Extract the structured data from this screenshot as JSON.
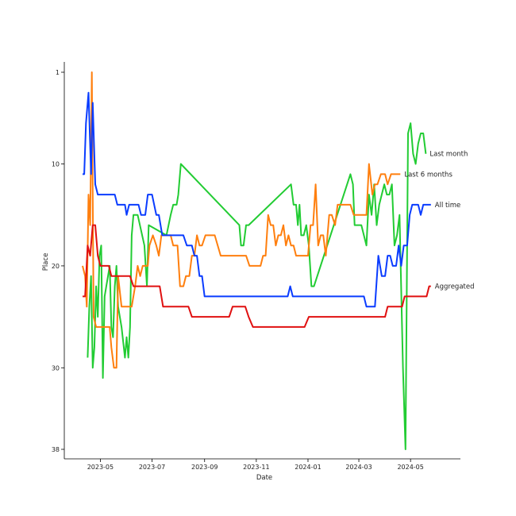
{
  "chart_data": {
    "type": "line",
    "xlabel": "Date",
    "ylabel": "Place",
    "y_axis": "inverted",
    "ylim": [
      1,
      38
    ],
    "xlim": [
      "2023-04-10",
      "2024-06-12"
    ],
    "x_ticks": [
      "2023-05",
      "2023-07",
      "2023-09",
      "2023-11",
      "2024-01",
      "2024-03",
      "2024-05"
    ],
    "y_ticks": [
      1,
      10,
      20,
      30,
      38
    ],
    "grid": false,
    "legend": "labels at line ends (right)",
    "series": [
      {
        "name": "Last month",
        "color": "#22cc33",
        "points": [
          [
            "2023-04-16",
            29
          ],
          [
            "2023-04-18",
            24
          ],
          [
            "2023-04-20",
            21
          ],
          [
            "2023-04-22",
            30
          ],
          [
            "2023-04-24",
            28
          ],
          [
            "2023-04-26",
            22
          ],
          [
            "2023-04-28",
            25
          ],
          [
            "2023-04-30",
            19
          ],
          [
            "2023-05-02",
            18
          ],
          [
            "2023-05-04",
            31
          ],
          [
            "2023-05-06",
            23
          ],
          [
            "2023-05-08",
            22
          ],
          [
            "2023-05-12",
            20
          ],
          [
            "2023-05-14",
            26
          ],
          [
            "2023-05-16",
            27
          ],
          [
            "2023-05-18",
            22
          ],
          [
            "2023-05-20",
            20
          ],
          [
            "2023-05-22",
            24
          ],
          [
            "2023-05-26",
            26
          ],
          [
            "2023-05-30",
            29
          ],
          [
            "2023-06-01",
            27
          ],
          [
            "2023-06-03",
            29
          ],
          [
            "2023-06-05",
            26
          ],
          [
            "2023-06-07",
            17
          ],
          [
            "2023-06-09",
            15
          ],
          [
            "2023-06-14",
            15
          ],
          [
            "2023-06-22",
            18
          ],
          [
            "2023-06-25",
            22
          ],
          [
            "2023-06-27",
            16
          ],
          [
            "2023-07-18",
            17
          ],
          [
            "2023-07-23",
            15
          ],
          [
            "2023-07-26",
            14
          ],
          [
            "2023-07-30",
            14
          ],
          [
            "2023-08-01",
            13
          ],
          [
            "2023-08-04",
            10
          ],
          [
            "2023-10-12",
            16
          ],
          [
            "2023-10-14",
            18
          ],
          [
            "2023-10-17",
            18
          ],
          [
            "2023-10-20",
            16
          ],
          [
            "2023-10-23",
            16
          ],
          [
            "2023-12-12",
            12
          ],
          [
            "2023-12-15",
            14
          ],
          [
            "2023-12-18",
            14
          ],
          [
            "2023-12-20",
            16
          ],
          [
            "2023-12-22",
            14
          ],
          [
            "2023-12-24",
            17
          ],
          [
            "2023-12-27",
            17
          ],
          [
            "2023-12-30",
            16
          ],
          [
            "2024-01-02",
            18
          ],
          [
            "2024-01-05",
            22
          ],
          [
            "2024-01-08",
            22
          ],
          [
            "2024-02-20",
            11
          ],
          [
            "2024-02-23",
            12
          ],
          [
            "2024-02-25",
            16
          ],
          [
            "2024-03-04",
            16
          ],
          [
            "2024-03-10",
            18
          ],
          [
            "2024-03-13",
            13
          ],
          [
            "2024-03-16",
            15
          ],
          [
            "2024-03-19",
            12
          ],
          [
            "2024-03-22",
            16
          ],
          [
            "2024-03-25",
            14
          ],
          [
            "2024-03-31",
            12
          ],
          [
            "2024-04-03",
            13
          ],
          [
            "2024-04-06",
            13
          ],
          [
            "2024-04-09",
            12
          ],
          [
            "2024-04-12",
            18
          ],
          [
            "2024-04-15",
            17
          ],
          [
            "2024-04-18",
            15
          ],
          [
            "2024-04-22",
            30
          ],
          [
            "2024-04-25",
            38
          ],
          [
            "2024-04-28",
            7
          ],
          [
            "2024-05-01",
            6
          ],
          [
            "2024-05-04",
            9
          ],
          [
            "2024-05-07",
            10
          ],
          [
            "2024-05-10",
            8
          ],
          [
            "2024-05-13",
            7
          ],
          [
            "2024-05-16",
            7
          ],
          [
            "2024-05-19",
            9
          ]
        ]
      },
      {
        "name": "Last 6 months",
        "color": "#ff7f0e",
        "points": [
          [
            "2023-04-10",
            20
          ],
          [
            "2023-04-13",
            21
          ],
          [
            "2023-04-15",
            24
          ],
          [
            "2023-04-17",
            13
          ],
          [
            "2023-04-19",
            16
          ],
          [
            "2023-04-21",
            1
          ],
          [
            "2023-04-23",
            25
          ],
          [
            "2023-04-26",
            26
          ],
          [
            "2023-04-30",
            26
          ],
          [
            "2023-05-08",
            26
          ],
          [
            "2023-05-12",
            26
          ],
          [
            "2023-05-14",
            28
          ],
          [
            "2023-05-17",
            30
          ],
          [
            "2023-05-20",
            30
          ],
          [
            "2023-05-22",
            21
          ],
          [
            "2023-05-26",
            24
          ],
          [
            "2023-06-07",
            24
          ],
          [
            "2023-06-11",
            22
          ],
          [
            "2023-06-14",
            20
          ],
          [
            "2023-06-17",
            21
          ],
          [
            "2023-06-20",
            20
          ],
          [
            "2023-06-26",
            20
          ],
          [
            "2023-06-28",
            18
          ],
          [
            "2023-07-02",
            17
          ],
          [
            "2023-07-06",
            18
          ],
          [
            "2023-07-09",
            19
          ],
          [
            "2023-07-12",
            17
          ],
          [
            "2023-07-23",
            17
          ],
          [
            "2023-07-26",
            18
          ],
          [
            "2023-07-31",
            18
          ],
          [
            "2023-08-03",
            22
          ],
          [
            "2023-08-07",
            22
          ],
          [
            "2023-08-10",
            21
          ],
          [
            "2023-08-14",
            21
          ],
          [
            "2023-08-17",
            19
          ],
          [
            "2023-08-20",
            19
          ],
          [
            "2023-08-23",
            17
          ],
          [
            "2023-08-26",
            18
          ],
          [
            "2023-08-29",
            18
          ],
          [
            "2023-09-02",
            17
          ],
          [
            "2023-09-13",
            17
          ],
          [
            "2023-09-20",
            19
          ],
          [
            "2023-10-04",
            19
          ],
          [
            "2023-10-20",
            19
          ],
          [
            "2023-10-24",
            20
          ],
          [
            "2023-11-06",
            20
          ],
          [
            "2023-11-09",
            19
          ],
          [
            "2023-11-12",
            19
          ],
          [
            "2023-11-15",
            15
          ],
          [
            "2023-11-18",
            16
          ],
          [
            "2023-11-21",
            16
          ],
          [
            "2023-11-24",
            18
          ],
          [
            "2023-11-27",
            17
          ],
          [
            "2023-11-30",
            17
          ],
          [
            "2023-12-03",
            16
          ],
          [
            "2023-12-06",
            18
          ],
          [
            "2023-12-09",
            17
          ],
          [
            "2023-12-12",
            18
          ],
          [
            "2023-12-15",
            18
          ],
          [
            "2023-12-18",
            19
          ],
          [
            "2023-12-25",
            19
          ],
          [
            "2024-01-01",
            19
          ],
          [
            "2024-01-04",
            16
          ],
          [
            "2024-01-07",
            16
          ],
          [
            "2024-01-10",
            12
          ],
          [
            "2024-01-13",
            18
          ],
          [
            "2024-01-16",
            17
          ],
          [
            "2024-01-19",
            17
          ],
          [
            "2024-01-22",
            19
          ],
          [
            "2024-01-26",
            15
          ],
          [
            "2024-01-29",
            15
          ],
          [
            "2024-02-02",
            16
          ],
          [
            "2024-02-05",
            14
          ],
          [
            "2024-02-20",
            14
          ],
          [
            "2024-02-24",
            15
          ],
          [
            "2024-03-10",
            15
          ],
          [
            "2024-03-13",
            10
          ],
          [
            "2024-03-17",
            13
          ],
          [
            "2024-03-20",
            12
          ],
          [
            "2024-03-23",
            12
          ],
          [
            "2024-03-27",
            11
          ],
          [
            "2024-04-01",
            11
          ],
          [
            "2024-04-04",
            12
          ],
          [
            "2024-04-08",
            11
          ],
          [
            "2024-04-19",
            11
          ]
        ]
      },
      {
        "name": "All time",
        "color": "#0a3cff",
        "points": [
          [
            "2023-04-10",
            11
          ],
          [
            "2023-04-12",
            11
          ],
          [
            "2023-04-14",
            6
          ],
          [
            "2023-04-17",
            3
          ],
          [
            "2023-04-20",
            11
          ],
          [
            "2023-04-22",
            4
          ],
          [
            "2023-04-25",
            12
          ],
          [
            "2023-04-28",
            13
          ],
          [
            "2023-05-18",
            13
          ],
          [
            "2023-05-21",
            14
          ],
          [
            "2023-05-30",
            14
          ],
          [
            "2023-06-01",
            15
          ],
          [
            "2023-06-04",
            14
          ],
          [
            "2023-06-08",
            14
          ],
          [
            "2023-06-15",
            14
          ],
          [
            "2023-06-18",
            15
          ],
          [
            "2023-06-23",
            15
          ],
          [
            "2023-06-26",
            13
          ],
          [
            "2023-07-01",
            13
          ],
          [
            "2023-07-06",
            15
          ],
          [
            "2023-07-09",
            15
          ],
          [
            "2023-07-13",
            17
          ],
          [
            "2023-07-17",
            17
          ],
          [
            "2023-08-07",
            17
          ],
          [
            "2023-08-11",
            18
          ],
          [
            "2023-08-17",
            18
          ],
          [
            "2023-08-20",
            19
          ],
          [
            "2023-08-23",
            19
          ],
          [
            "2023-08-26",
            21
          ],
          [
            "2023-08-29",
            21
          ],
          [
            "2023-09-01",
            23
          ],
          [
            "2023-12-08",
            23
          ],
          [
            "2023-12-11",
            22
          ],
          [
            "2023-12-14",
            23
          ],
          [
            "2024-03-07",
            23
          ],
          [
            "2024-03-10",
            24
          ],
          [
            "2024-03-20",
            24
          ],
          [
            "2024-03-24",
            19
          ],
          [
            "2024-03-28",
            21
          ],
          [
            "2024-04-01",
            21
          ],
          [
            "2024-04-04",
            19
          ],
          [
            "2024-04-07",
            19
          ],
          [
            "2024-04-10",
            20
          ],
          [
            "2024-04-14",
            20
          ],
          [
            "2024-04-17",
            18
          ],
          [
            "2024-04-20",
            20
          ],
          [
            "2024-04-23",
            18
          ],
          [
            "2024-04-27",
            18
          ],
          [
            "2024-04-30",
            15
          ],
          [
            "2024-05-03",
            14
          ],
          [
            "2024-05-06",
            14
          ],
          [
            "2024-05-10",
            14
          ],
          [
            "2024-05-13",
            15
          ],
          [
            "2024-05-16",
            14
          ],
          [
            "2024-05-25",
            14
          ]
        ]
      },
      {
        "name": "Aggregated",
        "color": "#e01010",
        "points": [
          [
            "2023-04-10",
            23
          ],
          [
            "2023-04-13",
            23
          ],
          [
            "2023-04-16",
            18
          ],
          [
            "2023-04-19",
            19
          ],
          [
            "2023-04-22",
            16
          ],
          [
            "2023-04-25",
            16
          ],
          [
            "2023-04-28",
            19
          ],
          [
            "2023-05-01",
            20
          ],
          [
            "2023-05-11",
            20
          ],
          [
            "2023-05-14",
            21
          ],
          [
            "2023-06-05",
            21
          ],
          [
            "2023-06-09",
            22
          ],
          [
            "2023-07-10",
            22
          ],
          [
            "2023-07-14",
            24
          ],
          [
            "2023-08-13",
            24
          ],
          [
            "2023-08-17",
            25
          ],
          [
            "2023-09-30",
            25
          ],
          [
            "2023-10-04",
            24
          ],
          [
            "2023-10-19",
            24
          ],
          [
            "2023-10-23",
            25
          ],
          [
            "2023-10-28",
            26
          ],
          [
            "2023-12-28",
            26
          ],
          [
            "2024-01-02",
            25
          ],
          [
            "2024-04-01",
            25
          ],
          [
            "2024-04-04",
            24
          ],
          [
            "2024-04-21",
            24
          ],
          [
            "2024-04-24",
            23
          ],
          [
            "2024-05-20",
            23
          ],
          [
            "2024-05-23",
            22
          ],
          [
            "2024-05-25",
            22
          ]
        ]
      }
    ]
  }
}
